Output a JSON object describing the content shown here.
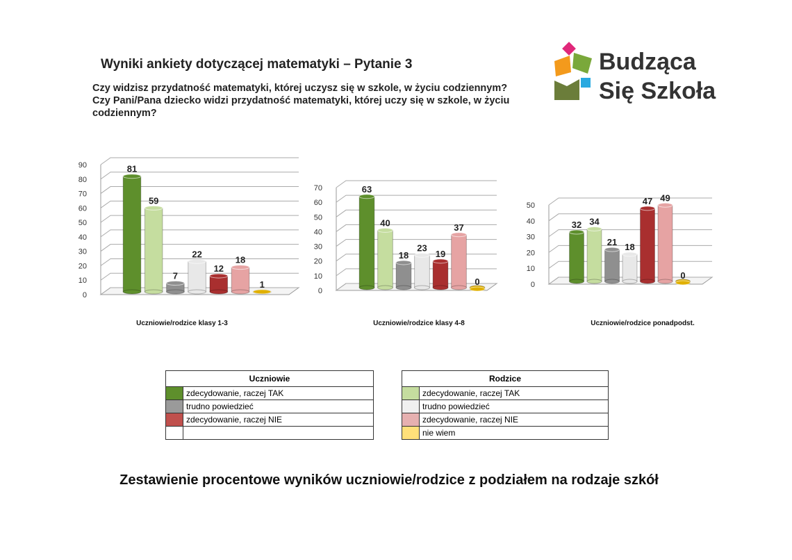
{
  "header": {
    "title": "Wyniki ankiety dotyczącej matematyki – Pytanie 3",
    "questions": [
      "Czy widzisz przydatność matematyki, której uczysz się w szkole, w życiu codziennym?",
      "Czy Pani/Pana dziecko widzi przydatność matematyki, której uczy się w szkole, w życiu codziennym?"
    ]
  },
  "logo": {
    "line1": "Budząca",
    "line2": "Się Szkoła"
  },
  "chart_data": [
    {
      "type": "bar",
      "x_label": "Uczniowie/rodzice klasy 1-3",
      "values": [
        81,
        59,
        7,
        22,
        12,
        18,
        1
      ],
      "colors": [
        "#5e8f2c",
        "#c5dd9f",
        "#8f8f8f",
        "#e8e8e8",
        "#a92f2f",
        "#e6a3a3",
        "#e0b000"
      ],
      "ylim": [
        0,
        90
      ],
      "yticks": [
        0,
        10,
        20,
        30,
        40,
        50,
        60,
        70,
        80,
        90
      ],
      "grid": true
    },
    {
      "type": "bar",
      "x_label": "Uczniowie/rodzice klasy 4-8",
      "values": [
        63,
        40,
        18,
        23,
        19,
        37,
        0
      ],
      "colors": [
        "#5e8f2c",
        "#c5dd9f",
        "#8f8f8f",
        "#e8e8e8",
        "#a92f2f",
        "#e6a3a3",
        "#e0b000"
      ],
      "ylim": [
        0,
        70
      ],
      "yticks": [
        0,
        10,
        20,
        30,
        40,
        50,
        60,
        70
      ],
      "grid": true
    },
    {
      "type": "bar",
      "x_label": "Uczniowie/rodzice ponadpodst.",
      "values": [
        32,
        34,
        21,
        18,
        47,
        49,
        0
      ],
      "colors": [
        "#5e8f2c",
        "#c5dd9f",
        "#8f8f8f",
        "#e8e8e8",
        "#a92f2f",
        "#e6a3a3",
        "#e0b000"
      ],
      "ylim": [
        0,
        50
      ],
      "yticks": [
        0,
        10,
        20,
        30,
        40,
        50
      ],
      "grid": true
    }
  ],
  "legend": {
    "students": {
      "title": "Uczniowie",
      "items": [
        {
          "label": "zdecydowanie, raczej TAK",
          "color": "#5e8f2c"
        },
        {
          "label": "trudno powiedzieć",
          "color": "#9a9a9a"
        },
        {
          "label": "zdecydowanie, raczej NIE",
          "color": "#c0504d"
        }
      ]
    },
    "parents": {
      "title": "Rodzice",
      "items": [
        {
          "label": "zdecydowanie, raczej TAK",
          "color": "#c5dd9f"
        },
        {
          "label": "trudno powiedzieć",
          "color": "#f0f0f0"
        },
        {
          "label": "zdecydowanie, raczej NIE",
          "color": "#e6b0b0"
        },
        {
          "label": "nie wiem",
          "color": "#ffe07a"
        }
      ]
    }
  },
  "footer": "Zestawienie procentowe wyników uczniowie/rodzice z podziałem na rodzaje szkół"
}
